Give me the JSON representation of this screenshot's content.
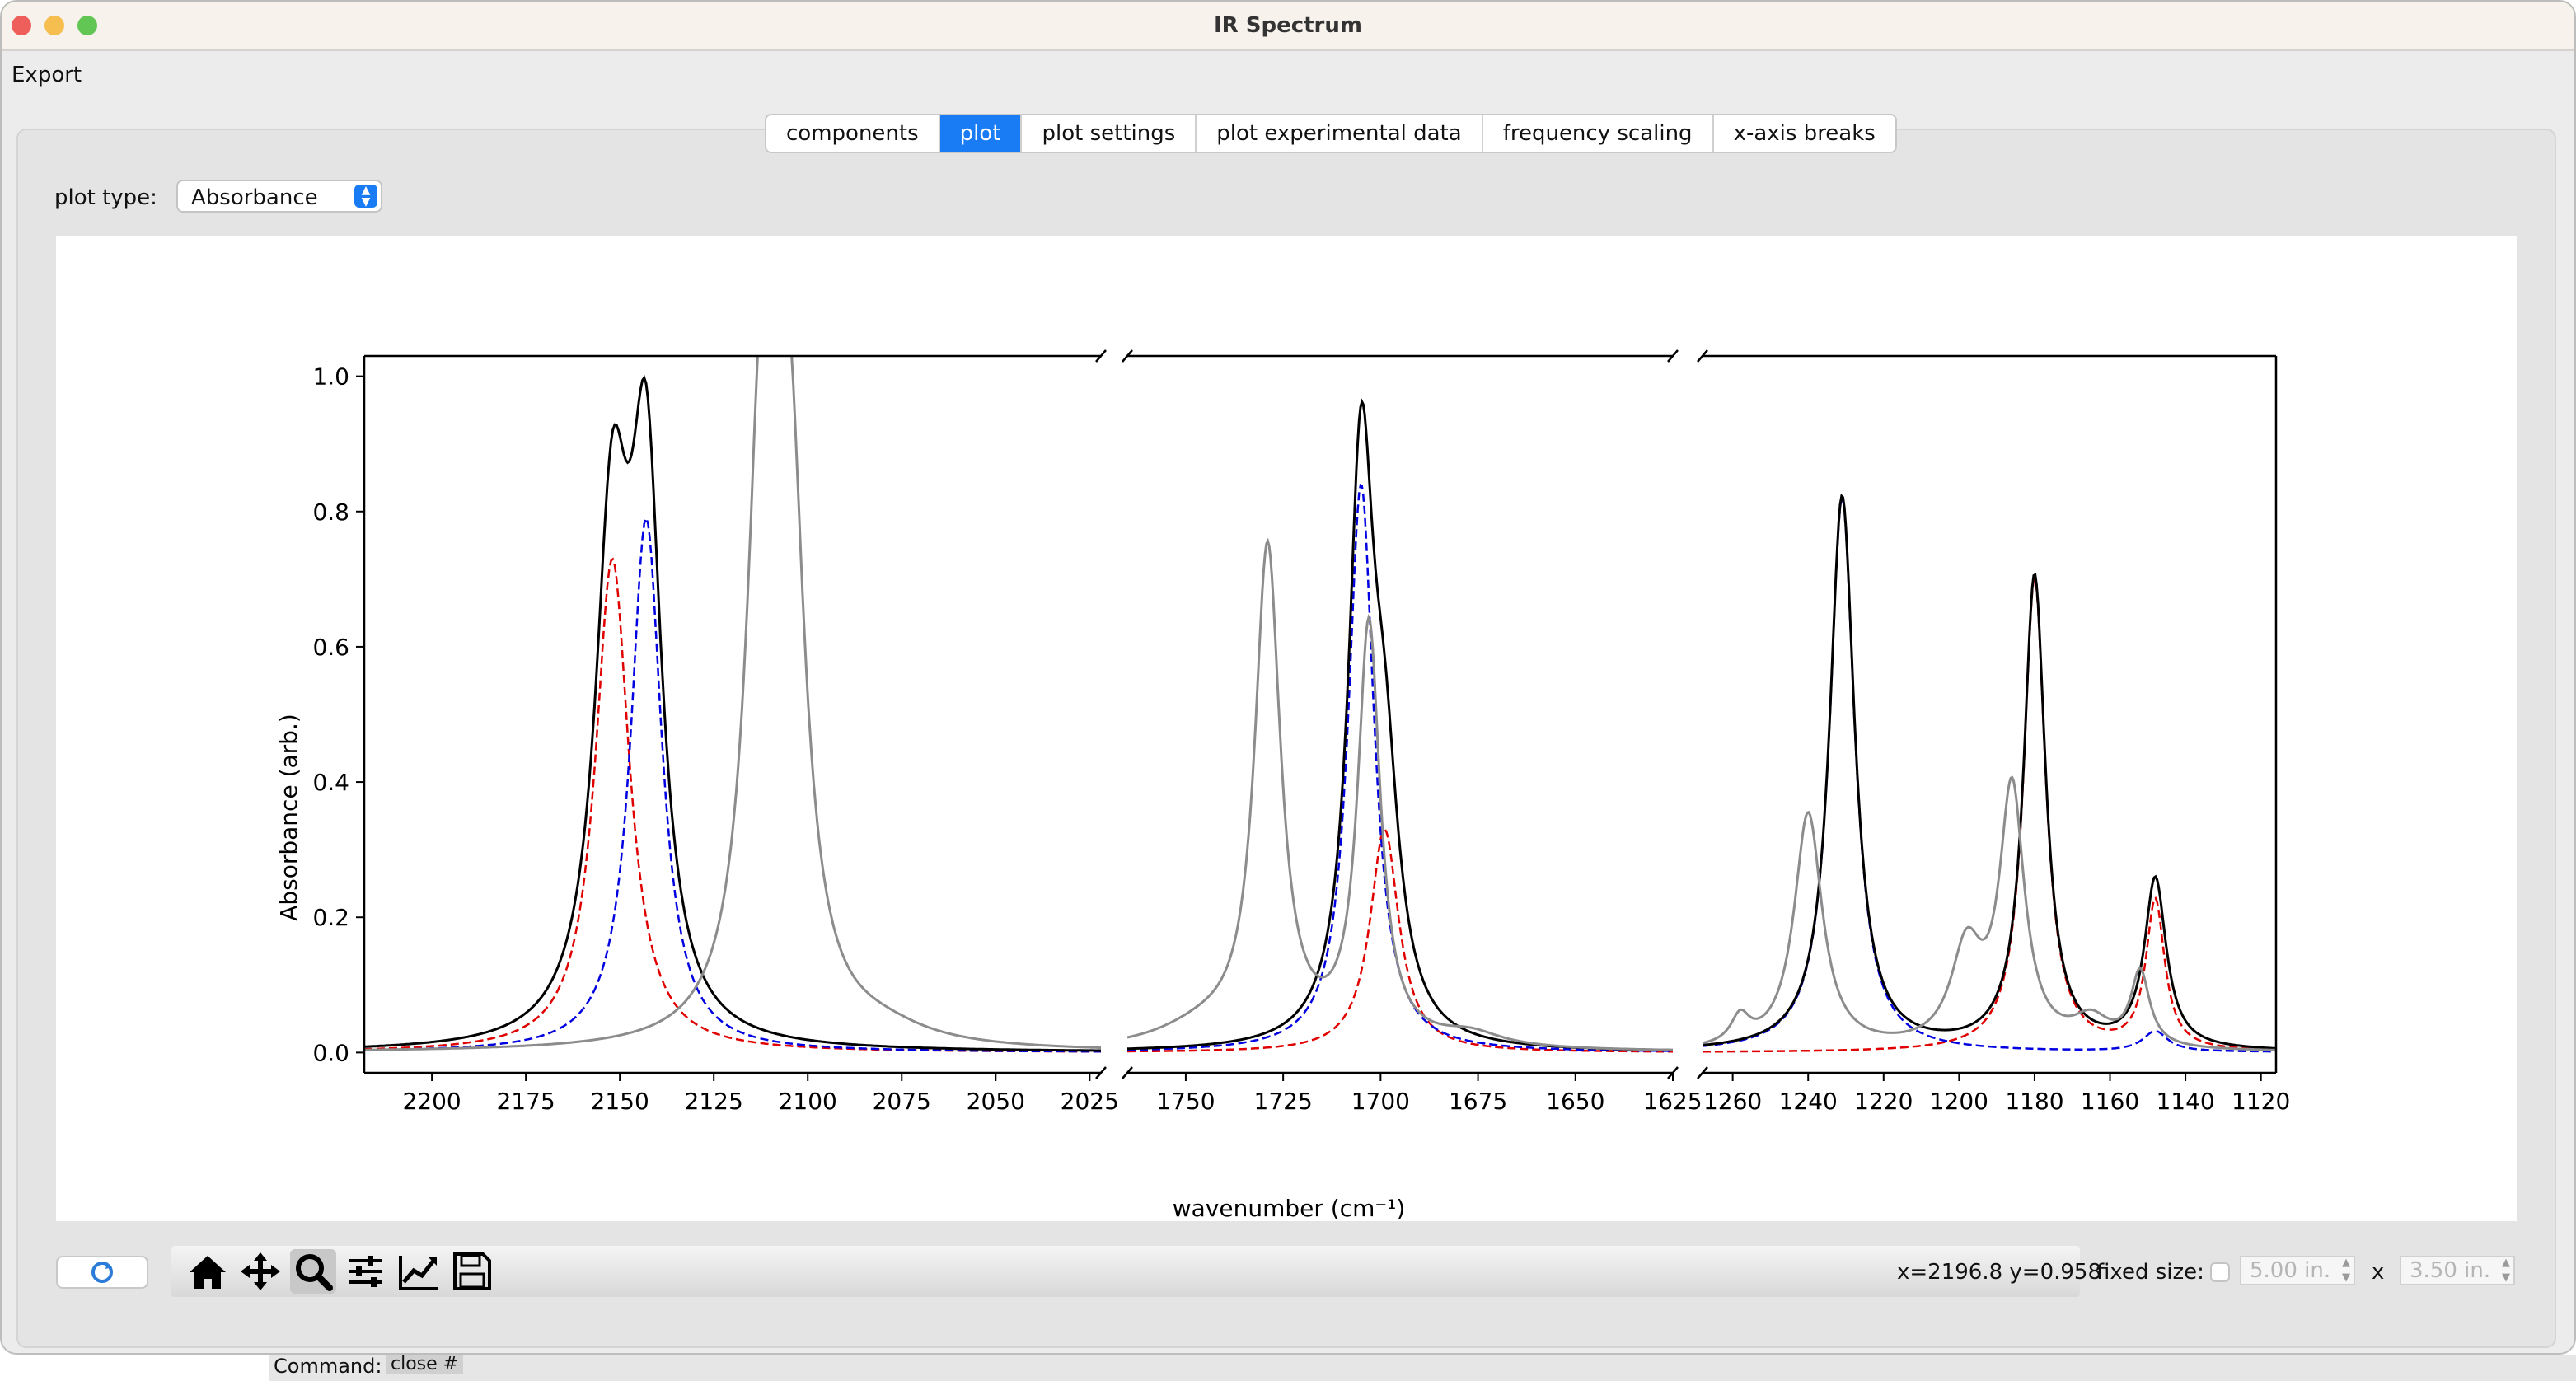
{
  "window": {
    "title": "IR Spectrum"
  },
  "menu": {
    "export": "Export"
  },
  "tabs": [
    {
      "label": "components",
      "active": false
    },
    {
      "label": "plot",
      "active": true
    },
    {
      "label": "plot settings",
      "active": false
    },
    {
      "label": "plot experimental data",
      "active": false
    },
    {
      "label": "frequency scaling",
      "active": false
    },
    {
      "label": "x-axis breaks",
      "active": false
    }
  ],
  "plot_type": {
    "label": "plot type:",
    "value": "Absorbance"
  },
  "toolbar": {
    "icons": [
      "refresh-icon",
      "home-icon",
      "pan-icon",
      "zoom-icon",
      "configure-subplots-icon",
      "edit-axes-icon",
      "save-icon"
    ],
    "coords": "x=2196.8 y=0.958",
    "fixed_size_label": "fixed size:",
    "width_value": "5.00 in.",
    "x_sep": "x",
    "height_value": "3.50 in."
  },
  "command": {
    "label": "Command:",
    "value": "close #"
  },
  "colors": {
    "accent": "#1a7cf5",
    "total": "#000000",
    "component1": "#e00000",
    "component2": "#0000e0",
    "experimental": "#8c8c8c"
  },
  "chart_data": {
    "type": "line",
    "xlabel": "wavenumber (cm⁻¹)",
    "ylabel": "Absorbance (arb.)",
    "ylim": [
      -0.03,
      1.03
    ],
    "yticks": [
      0.0,
      0.2,
      0.4,
      0.6,
      0.8,
      1.0
    ],
    "yticklabels": [
      "0.0",
      "0.2",
      "0.4",
      "0.6",
      "0.8",
      "1.0"
    ],
    "x_inverted": true,
    "grid": false,
    "panels": [
      {
        "xlim": [
          2218,
          2022
        ],
        "xticks": [
          2200,
          2175,
          2150,
          2125,
          2100,
          2075,
          2050,
          2025
        ],
        "xticklabels": [
          "2200",
          "2175",
          "2150",
          "2125",
          "2100",
          "2075",
          "2050",
          "2025"
        ]
      },
      {
        "xlim": [
          1765,
          1625
        ],
        "xticks": [
          1750,
          1725,
          1700,
          1675,
          1650,
          1625
        ],
        "xticklabels": [
          "1750",
          "1725",
          "1700",
          "1675",
          "1650",
          "1625"
        ]
      },
      {
        "xlim": [
          1268,
          1116
        ],
        "xticks": [
          1260,
          1240,
          1220,
          1200,
          1180,
          1160,
          1140,
          1120
        ],
        "xticklabels": [
          "1260",
          "1240",
          "1220",
          "1200",
          "1180",
          "1160",
          "1140",
          "1120"
        ]
      }
    ],
    "series": [
      {
        "color": "#e00000",
        "style": "dashed",
        "peaks": [
          {
            "x0": 2152,
            "a": 0.73,
            "w": 5.5
          },
          {
            "x0": 1699,
            "a": 0.33,
            "w": 4.5
          },
          {
            "x0": 1180,
            "a": 0.7,
            "w": 3.5
          },
          {
            "x0": 1148,
            "a": 0.22,
            "w": 3.0
          }
        ]
      },
      {
        "color": "#0000e0",
        "style": "dashed",
        "peaks": [
          {
            "x0": 2143,
            "a": 0.79,
            "w": 5.0
          },
          {
            "x0": 1705,
            "a": 0.84,
            "w": 4.0
          },
          {
            "x0": 1231,
            "a": 0.82,
            "w": 4.0
          },
          {
            "x0": 1148,
            "a": 0.03,
            "w": 4.0
          }
        ]
      },
      {
        "color": "#000000",
        "style": "solid",
        "peaks": [
          {
            "x0": 2152,
            "a": 0.73,
            "w": 5.5
          },
          {
            "x0": 2143,
            "a": 0.79,
            "w": 5.0
          },
          {
            "x0": 1705,
            "a": 0.84,
            "w": 4.0
          },
          {
            "x0": 1699,
            "a": 0.33,
            "w": 4.5
          },
          {
            "x0": 1231,
            "a": 0.82,
            "w": 4.0
          },
          {
            "x0": 1180,
            "a": 0.7,
            "w": 3.5
          },
          {
            "x0": 1148,
            "a": 0.25,
            "w": 3.5
          }
        ]
      },
      {
        "color": "#8c8c8c",
        "style": "solid",
        "peaks": [
          {
            "x0": 2112,
            "a": 0.88,
            "w": 5.0
          },
          {
            "x0": 2105,
            "a": 0.78,
            "w": 5.0
          },
          {
            "x0": 2080,
            "a": 0.02,
            "w": 15.0
          },
          {
            "x0": 1729,
            "a": 0.73,
            "w": 4.0
          },
          {
            "x0": 1703,
            "a": 0.62,
            "w": 3.5
          },
          {
            "x0": 1745,
            "a": 0.03,
            "w": 15.0
          },
          {
            "x0": 1677,
            "a": 0.02,
            "w": 10.0
          },
          {
            "x0": 1240,
            "a": 0.35,
            "w": 4.5
          },
          {
            "x0": 1258,
            "a": 0.04,
            "w": 3.0
          },
          {
            "x0": 1198,
            "a": 0.14,
            "w": 5.0
          },
          {
            "x0": 1186,
            "a": 0.38,
            "w": 4.0
          },
          {
            "x0": 1165,
            "a": 0.04,
            "w": 6.0
          },
          {
            "x0": 1152,
            "a": 0.11,
            "w": 3.0
          }
        ]
      }
    ]
  }
}
